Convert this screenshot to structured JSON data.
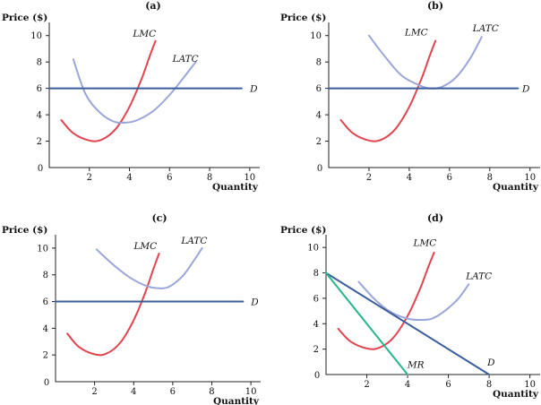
{
  "chart_data": [
    {
      "type": "line",
      "title": "(a)",
      "ylabel": "Price ($)",
      "xlabel": "Quantity",
      "xlim": [
        0,
        10.5
      ],
      "ylim": [
        0,
        11
      ],
      "xticks": [
        "0",
        "2",
        "4",
        "6",
        "8",
        "10"
      ],
      "yticks": [
        "2",
        "4",
        "6",
        "8",
        "10"
      ],
      "series": [
        {
          "name": "LMC",
          "color": "#e0454f",
          "label_at": [
            4.75,
            10.2
          ],
          "x": [
            0.6,
            1.2,
            2.0,
            2.6,
            3.3,
            4.0,
            4.6,
            5.0,
            5.3
          ],
          "y": [
            3.6,
            2.6,
            2.05,
            2.1,
            2.9,
            4.6,
            6.7,
            8.4,
            9.6
          ]
        },
        {
          "name": "LATC",
          "color": "#9aa6d8",
          "label_at": [
            6.8,
            8.3
          ],
          "x": [
            1.2,
            1.8,
            2.5,
            3.2,
            3.8,
            4.4,
            5.2,
            6.0,
            6.8,
            7.3
          ],
          "y": [
            8.2,
            5.6,
            4.2,
            3.5,
            3.4,
            3.6,
            4.3,
            5.5,
            7.0,
            8.0
          ]
        },
        {
          "name": "D",
          "color": "#3a5d9c",
          "label_at": [
            10.2,
            6.0
          ],
          "x": [
            0,
            9.6
          ],
          "y": [
            6,
            6
          ]
        }
      ]
    },
    {
      "type": "line",
      "title": "(b)",
      "ylabel": "Price ($)",
      "xlabel": "Quantity",
      "xlim": [
        0,
        10.5
      ],
      "ylim": [
        0,
        11
      ],
      "xticks": [
        "0",
        "2",
        "4",
        "6",
        "8",
        "10"
      ],
      "yticks": [
        "2",
        "4",
        "6",
        "8",
        "10"
      ],
      "series": [
        {
          "name": "LMC",
          "color": "#e0454f",
          "label_at": [
            4.35,
            10.3
          ],
          "x": [
            0.6,
            1.2,
            2.0,
            2.6,
            3.3,
            4.0,
            4.6,
            5.0,
            5.3
          ],
          "y": [
            3.6,
            2.6,
            2.05,
            2.1,
            2.9,
            4.6,
            6.7,
            8.4,
            9.6
          ]
        },
        {
          "name": "LATC",
          "color": "#9aa6d8",
          "label_at": [
            7.8,
            10.6
          ],
          "x": [
            2.0,
            2.8,
            3.6,
            4.4,
            5.0,
            5.6,
            6.3,
            7.0,
            7.6
          ],
          "y": [
            10.0,
            8.4,
            7.0,
            6.3,
            6.0,
            6.1,
            6.8,
            8.2,
            9.9
          ]
        },
        {
          "name": "D",
          "color": "#3a5d9c",
          "label_at": [
            9.8,
            6.0
          ],
          "x": [
            0,
            9.4
          ],
          "y": [
            6,
            6
          ]
        }
      ]
    },
    {
      "type": "line",
      "title": "(c)",
      "ylabel": "Price ($)",
      "xlabel": "Quantity",
      "xlim": [
        0,
        10.5
      ],
      "ylim": [
        0,
        11
      ],
      "xticks": [
        "0",
        "2",
        "4",
        "6",
        "8",
        "10"
      ],
      "yticks": [
        "2",
        "4",
        "6",
        "8",
        "10"
      ],
      "series": [
        {
          "name": "LMC",
          "color": "#e0454f",
          "label_at": [
            4.6,
            10.2
          ],
          "x": [
            0.6,
            1.2,
            2.0,
            2.6,
            3.3,
            4.0,
            4.6,
            5.0,
            5.3
          ],
          "y": [
            3.6,
            2.6,
            2.05,
            2.1,
            2.9,
            4.6,
            6.7,
            8.4,
            9.6
          ]
        },
        {
          "name": "LATC",
          "color": "#9aa6d8",
          "label_at": [
            7.1,
            10.6
          ],
          "x": [
            2.1,
            3.0,
            3.8,
            4.6,
            5.2,
            5.8,
            6.5,
            7.1,
            7.5
          ],
          "y": [
            9.9,
            8.7,
            7.8,
            7.2,
            7.0,
            7.1,
            7.9,
            9.1,
            10.0
          ]
        },
        {
          "name": "D",
          "color": "#3a5d9c",
          "label_at": [
            10.2,
            6.0
          ],
          "x": [
            0,
            9.6
          ],
          "y": [
            6,
            6
          ]
        }
      ]
    },
    {
      "type": "line",
      "title": "(d)",
      "ylabel": "Price ($)",
      "xlabel": "Quantity",
      "xlim": [
        0,
        10.5
      ],
      "ylim": [
        0,
        11
      ],
      "xticks": [
        "0",
        "2",
        "4",
        "6",
        "8",
        "10"
      ],
      "yticks": [
        "2",
        "4",
        "6",
        "8",
        "10"
      ],
      "series": [
        {
          "name": "LMC",
          "color": "#e0454f",
          "label_at": [
            4.85,
            10.4
          ],
          "x": [
            0.6,
            1.2,
            2.0,
            2.6,
            3.3,
            4.0,
            4.6,
            5.0,
            5.3
          ],
          "y": [
            3.6,
            2.6,
            2.05,
            2.1,
            2.9,
            4.6,
            6.7,
            8.4,
            9.6
          ]
        },
        {
          "name": "LATC",
          "color": "#9aa6d8",
          "label_at": [
            7.5,
            7.8
          ],
          "x": [
            1.6,
            2.4,
            3.2,
            4.0,
            4.6,
            5.2,
            5.9,
            6.5,
            7.0
          ],
          "y": [
            7.3,
            5.9,
            4.9,
            4.4,
            4.3,
            4.4,
            5.1,
            6.0,
            7.1
          ]
        },
        {
          "name": "D",
          "color": "#3a5d9c",
          "label_at": [
            8.1,
            1.0
          ],
          "x": [
            0,
            8
          ],
          "y": [
            8,
            0
          ]
        },
        {
          "name": "MR",
          "color": "#26b68a",
          "label_at": [
            4.4,
            0.8
          ],
          "x": [
            0,
            4
          ],
          "y": [
            8,
            0
          ]
        }
      ]
    }
  ]
}
